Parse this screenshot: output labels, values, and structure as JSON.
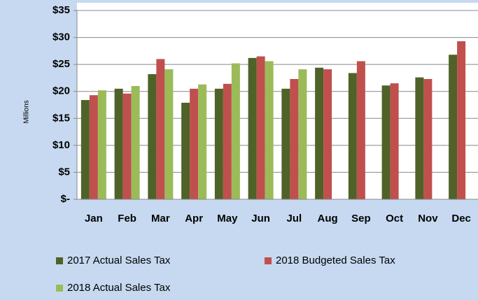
{
  "chart_data": {
    "type": "bar",
    "y_label": "Millions",
    "categories": [
      "Jan",
      "Feb",
      "Mar",
      "Apr",
      "May",
      "Jun",
      "Jul",
      "Aug",
      "Sep",
      "Oct",
      "Nov",
      "Dec"
    ],
    "series": [
      {
        "name": "2017 Actual Sales Tax",
        "color": "#4f6228",
        "values": [
          18.4,
          20.5,
          23.2,
          17.9,
          20.5,
          26.2,
          20.5,
          24.4,
          23.4,
          21.1,
          22.6,
          26.8
        ]
      },
      {
        "name": "2018 Budgeted Sales Tax",
        "color": "#c0504d",
        "values": [
          19.3,
          19.6,
          26.0,
          20.5,
          21.4,
          26.5,
          22.3,
          24.1,
          25.6,
          21.5,
          22.3,
          29.3
        ]
      },
      {
        "name": "2018 Actual Sales Tax",
        "color": "#9bbb59",
        "values": [
          20.2,
          21.0,
          24.1,
          21.3,
          25.2,
          25.6,
          24.1,
          null,
          null,
          null,
          null,
          null
        ]
      }
    ],
    "ylim": [
      0,
      35
    ],
    "yticks": [
      {
        "value": 0,
        "label": "$-"
      },
      {
        "value": 5,
        "label": "$5"
      },
      {
        "value": 10,
        "label": "$10"
      },
      {
        "value": 15,
        "label": "$15"
      },
      {
        "value": 20,
        "label": "$20"
      },
      {
        "value": 25,
        "label": "$25"
      },
      {
        "value": 30,
        "label": "$30"
      },
      {
        "value": 35,
        "label": "$35"
      }
    ],
    "grid": true
  }
}
